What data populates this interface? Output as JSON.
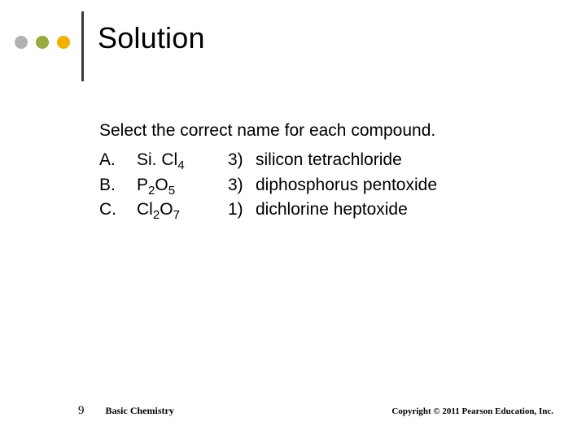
{
  "colors": {
    "bullet_gray": "#b2b2b2",
    "bullet_olive": "#99a83f",
    "bullet_yellow": "#f2b100",
    "vrule": "#3a3a3a",
    "background": "#ffffff",
    "text": "#000000"
  },
  "title": "Solution",
  "prompt": "Select the correct name for each compound.",
  "items": [
    {
      "letter": "A.",
      "base1": "Si. Cl",
      "sub1": "4",
      "base2": "",
      "sub2": "",
      "num": "3)",
      "name": "silicon tetrachloride"
    },
    {
      "letter": "B.",
      "base1": "P",
      "sub1": "2",
      "base2": "O",
      "sub2": "5",
      "num": "3)",
      "name": "diphosphorus pentoxide"
    },
    {
      "letter": "C.",
      "base1": "Cl",
      "sub1": "2",
      "base2": "O",
      "sub2": "7",
      "num": "1)",
      "name": "dichlorine  heptoxide"
    }
  ],
  "footer": {
    "slide_number": "9",
    "book_title": "Basic Chemistry",
    "copyright": "Copyright © 2011 Pearson Education, Inc."
  }
}
